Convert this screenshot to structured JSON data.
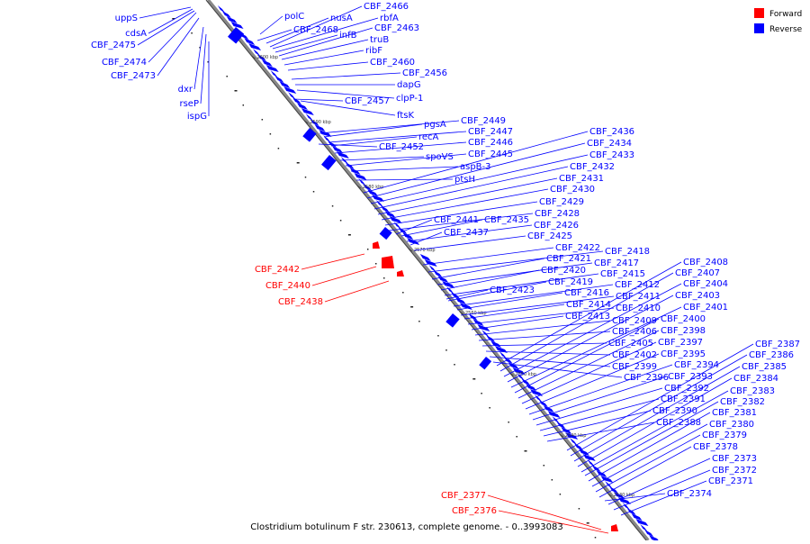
{
  "caption": "Clostridium botulinum F str. 230613, complete genome. - 0..3993083",
  "legend": [
    {
      "label": "Forward",
      "color": "#ff0000"
    },
    {
      "label": "Reverse",
      "color": "#0000ff"
    }
  ],
  "ticks": [
    "2600 kbp",
    "2590 kbp",
    "2580 kbp",
    "2570 kbp",
    "2560 kbp",
    "2550 kbp",
    "2540 kbp",
    "2530 kbp"
  ],
  "labels": {
    "uppS": "uppS",
    "cdsA": "cdsA",
    "CBF_2475": "CBF_2475",
    "CBF_2474": "CBF_2474",
    "CBF_2473": "CBF_2473",
    "dxr": "dxr",
    "rseP": "rseP",
    "ispG": "ispG",
    "polC": "polC",
    "nusA": "nusA",
    "CBF_2466": "CBF_2466",
    "rbfA": "rbfA",
    "CBF_2468": "CBF_2468",
    "infB": "infB",
    "CBF_2463": "CBF_2463",
    "truB": "truB",
    "ribF": "ribF",
    "CBF_2460": "CBF_2460",
    "CBF_2456": "CBF_2456",
    "dapG": "dapG",
    "clpP-1": "clpP-1",
    "CBF_2457": "CBF_2457",
    "ftsK": "ftsK",
    "CBF_2449": "CBF_2449",
    "pgsA": "pgsA",
    "CBF_2447": "CBF_2447",
    "recA": "recA",
    "CBF_2446": "CBF_2446",
    "CBF_2452": "CBF_2452",
    "spoVS": "spoVS",
    "CBF_2445": "CBF_2445",
    "aspB-3": "aspB-3",
    "ptsH": "ptsH",
    "CBF_2436": "CBF_2436",
    "CBF_2434": "CBF_2434",
    "CBF_2433": "CBF_2433",
    "CBF_2432": "CBF_2432",
    "CBF_2431": "CBF_2431",
    "CBF_2430": "CBF_2430",
    "CBF_2429": "CBF_2429",
    "CBF_2428": "CBF_2428",
    "CBF_2441": "CBF_2441",
    "CBF_2435": "CBF_2435",
    "CBF_2426": "CBF_2426",
    "CBF_2437": "CBF_2437",
    "CBF_2425": "CBF_2425",
    "CBF_2422": "CBF_2422",
    "CBF_2418": "CBF_2418",
    "CBF_2421": "CBF_2421",
    "CBF_2417": "CBF_2417",
    "CBF_2420": "CBF_2420",
    "CBF_2415": "CBF_2415",
    "CBF_2419": "CBF_2419",
    "CBF_2412": "CBF_2412",
    "CBF_2423": "CBF_2423",
    "CBF_2416": "CBF_2416",
    "CBF_2411": "CBF_2411",
    "CBF_2414": "CBF_2414",
    "CBF_2410": "CBF_2410",
    "CBF_2413": "CBF_2413",
    "CBF_2409": "CBF_2409",
    "CBF_2406": "CBF_2406",
    "CBF_2405": "CBF_2405",
    "CBF_2402": "CBF_2402",
    "CBF_2399": "CBF_2399",
    "CBF_2396": "CBF_2396",
    "CBF_2408": "CBF_2408",
    "CBF_2407": "CBF_2407",
    "CBF_2404": "CBF_2404",
    "CBF_2403": "CBF_2403",
    "CBF_2401": "CBF_2401",
    "CBF_2400": "CBF_2400",
    "CBF_2398": "CBF_2398",
    "CBF_2397": "CBF_2397",
    "CBF_2395": "CBF_2395",
    "CBF_2394": "CBF_2394",
    "CBF_2393": "CBF_2393",
    "CBF_2392": "CBF_2392",
    "CBF_2391": "CBF_2391",
    "CBF_2390": "CBF_2390",
    "CBF_2388": "CBF_2388",
    "CBF_2387": "CBF_2387",
    "CBF_2386": "CBF_2386",
    "CBF_2385": "CBF_2385",
    "CBF_2384": "CBF_2384",
    "CBF_2383": "CBF_2383",
    "CBF_2382": "CBF_2382",
    "CBF_2381": "CBF_2381",
    "CBF_2380": "CBF_2380",
    "CBF_2379": "CBF_2379",
    "CBF_2378": "CBF_2378",
    "CBF_2373": "CBF_2373",
    "CBF_2372": "CBF_2372",
    "CBF_2371": "CBF_2371",
    "CBF_2374": "CBF_2374",
    "CBF_2442": "CBF_2442",
    "CBF_2440": "CBF_2440",
    "CBF_2438": "CBF_2438",
    "CBF_2377": "CBF_2377",
    "CBF_2376": "CBF_2376"
  }
}
